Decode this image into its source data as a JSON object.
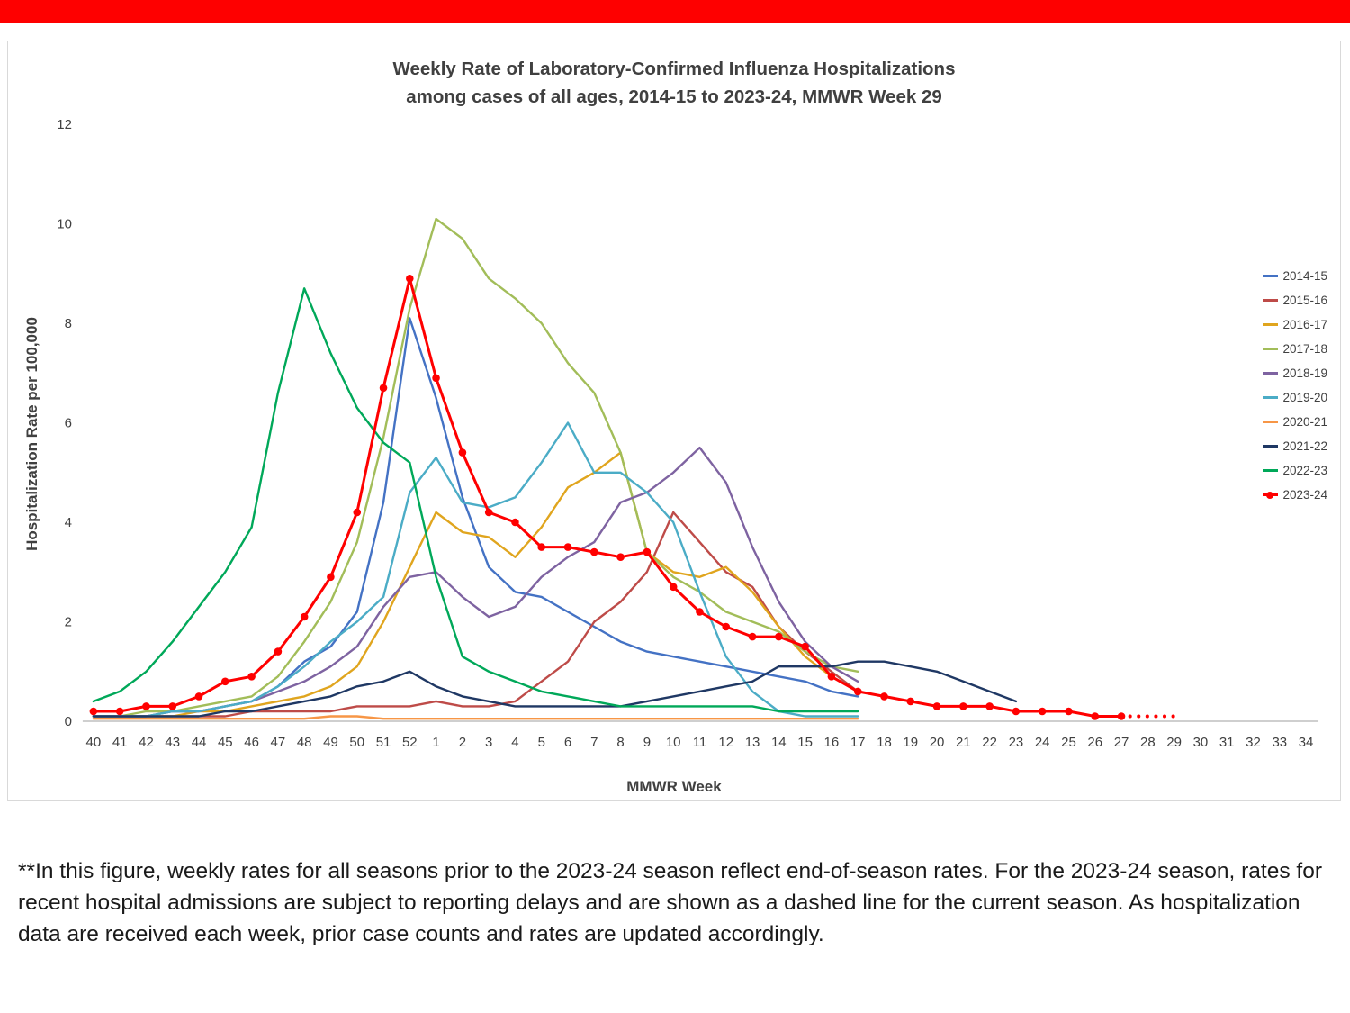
{
  "banner": {
    "color": "#FE0000"
  },
  "footnote": "**In this figure, weekly rates for all seasons prior to the 2023-24 season reflect end-of-season rates. For the 2023-24 season, rates for recent hospital admissions are subject to reporting delays and are shown as a dashed line for the current season. As hospitalization data are received each week, prior case counts and rates are updated accordingly.",
  "chart_data": {
    "type": "line",
    "title_line1": "Weekly Rate of Laboratory-Confirmed Influenza Hospitalizations",
    "title_line2": "among cases of all ages, 2014-15 to 2023-24, MMWR Week 29",
    "xlabel": "MMWR Week",
    "ylabel": "Hospitalization Rate per 100,000",
    "ylim": [
      0,
      12
    ],
    "yticks": [
      0,
      2,
      4,
      6,
      8,
      10,
      12
    ],
    "grid": false,
    "legend_position": "right",
    "categories": [
      "40",
      "41",
      "42",
      "43",
      "44",
      "45",
      "46",
      "47",
      "48",
      "49",
      "50",
      "51",
      "52",
      "1",
      "2",
      "3",
      "4",
      "5",
      "6",
      "7",
      "8",
      "9",
      "10",
      "11",
      "12",
      "13",
      "14",
      "15",
      "16",
      "17",
      "18",
      "19",
      "20",
      "21",
      "22",
      "23",
      "24",
      "25",
      "26",
      "27",
      "28",
      "29",
      "30",
      "31",
      "32",
      "33",
      "34"
    ],
    "series": [
      {
        "name": "2014-15",
        "color": "#4472C4",
        "values": [
          0.1,
          0.1,
          0.1,
          0.2,
          0.2,
          0.3,
          0.4,
          0.7,
          1.2,
          1.5,
          2.2,
          4.4,
          8.1,
          6.5,
          4.5,
          3.1,
          2.6,
          2.5,
          2.2,
          1.9,
          1.6,
          1.4,
          1.3,
          1.2,
          1.1,
          1.0,
          0.9,
          0.8,
          0.6,
          0.5,
          null,
          null,
          null,
          null,
          null,
          null,
          null,
          null,
          null,
          null,
          null,
          null,
          null,
          null,
          null,
          null,
          null
        ]
      },
      {
        "name": "2015-16",
        "color": "#BE4B48",
        "values": [
          0.1,
          0.1,
          0.1,
          0.1,
          0.1,
          0.1,
          0.2,
          0.2,
          0.2,
          0.2,
          0.3,
          0.3,
          0.3,
          0.4,
          0.3,
          0.3,
          0.4,
          0.8,
          1.2,
          2.0,
          2.4,
          3.0,
          4.2,
          3.6,
          3.0,
          2.7,
          1.9,
          1.4,
          1.0,
          0.6,
          null,
          null,
          null,
          null,
          null,
          null,
          null,
          null,
          null,
          null,
          null,
          null,
          null,
          null,
          null,
          null,
          null
        ]
      },
      {
        "name": "2016-17",
        "color": "#E0A51E",
        "values": [
          0.1,
          0.1,
          0.1,
          0.1,
          0.2,
          0.2,
          0.3,
          0.4,
          0.5,
          0.7,
          1.1,
          2.0,
          3.1,
          4.2,
          3.8,
          3.7,
          3.3,
          3.9,
          4.7,
          5.0,
          5.4,
          3.4,
          3.0,
          2.9,
          3.1,
          2.6,
          1.9,
          1.3,
          0.9,
          0.6,
          null,
          null,
          null,
          null,
          null,
          null,
          null,
          null,
          null,
          null,
          null,
          null,
          null,
          null,
          null,
          null,
          null
        ]
      },
      {
        "name": "2017-18",
        "color": "#A2BD59",
        "values": [
          0.1,
          0.1,
          0.2,
          0.2,
          0.3,
          0.4,
          0.5,
          0.9,
          1.6,
          2.4,
          3.6,
          5.7,
          8.3,
          10.1,
          9.7,
          8.9,
          8.5,
          8.0,
          7.2,
          6.6,
          5.4,
          3.4,
          2.9,
          2.6,
          2.2,
          2.0,
          1.8,
          1.4,
          1.1,
          1.0,
          null,
          null,
          null,
          null,
          null,
          null,
          null,
          null,
          null,
          null,
          null,
          null,
          null,
          null,
          null,
          null,
          null
        ]
      },
      {
        "name": "2018-19",
        "color": "#7E63A1",
        "values": [
          0.1,
          0.1,
          0.1,
          0.2,
          0.2,
          0.3,
          0.4,
          0.6,
          0.8,
          1.1,
          1.5,
          2.3,
          2.9,
          3.0,
          2.5,
          2.1,
          2.3,
          2.9,
          3.3,
          3.6,
          4.4,
          4.6,
          5.0,
          5.5,
          4.8,
          3.5,
          2.4,
          1.6,
          1.1,
          0.8,
          null,
          null,
          null,
          null,
          null,
          null,
          null,
          null,
          null,
          null,
          null,
          null,
          null,
          null,
          null,
          null,
          null
        ]
      },
      {
        "name": "2019-20",
        "color": "#4BACC6",
        "values": [
          0.1,
          0.1,
          0.1,
          0.2,
          0.2,
          0.3,
          0.4,
          0.7,
          1.1,
          1.6,
          2.0,
          2.5,
          4.6,
          5.3,
          4.4,
          4.3,
          4.5,
          5.2,
          6.0,
          5.0,
          5.0,
          4.6,
          4.0,
          2.6,
          1.3,
          0.6,
          0.2,
          0.1,
          0.1,
          0.1,
          null,
          null,
          null,
          null,
          null,
          null,
          null,
          null,
          null,
          null,
          null,
          null,
          null,
          null,
          null,
          null,
          null
        ]
      },
      {
        "name": "2020-21",
        "color": "#F79646",
        "values": [
          0.05,
          0.05,
          0.05,
          0.05,
          0.05,
          0.05,
          0.05,
          0.05,
          0.05,
          0.1,
          0.1,
          0.05,
          0.05,
          0.05,
          0.05,
          0.05,
          0.05,
          0.05,
          0.05,
          0.05,
          0.05,
          0.05,
          0.05,
          0.05,
          0.05,
          0.05,
          0.05,
          0.05,
          0.05,
          0.05,
          null,
          null,
          null,
          null,
          null,
          null,
          null,
          null,
          null,
          null,
          null,
          null,
          null,
          null,
          null,
          null,
          null
        ]
      },
      {
        "name": "2021-22",
        "color": "#1F3864",
        "values": [
          0.1,
          0.1,
          0.1,
          0.1,
          0.1,
          0.2,
          0.2,
          0.3,
          0.4,
          0.5,
          0.7,
          0.8,
          1.0,
          0.7,
          0.5,
          0.4,
          0.3,
          0.3,
          0.3,
          0.3,
          0.3,
          0.4,
          0.5,
          0.6,
          0.7,
          0.8,
          1.1,
          1.1,
          1.1,
          1.2,
          1.2,
          1.1,
          1.0,
          0.8,
          0.6,
          0.4,
          null,
          null,
          null,
          null,
          null,
          null,
          null,
          null,
          null,
          null,
          null
        ]
      },
      {
        "name": "2022-23",
        "color": "#00A859",
        "values": [
          0.4,
          0.6,
          1.0,
          1.6,
          2.3,
          3.0,
          3.9,
          6.6,
          8.7,
          7.4,
          6.3,
          5.6,
          5.2,
          2.9,
          1.3,
          1.0,
          0.8,
          0.6,
          0.5,
          0.4,
          0.3,
          0.3,
          0.3,
          0.3,
          0.3,
          0.3,
          0.2,
          0.2,
          0.2,
          0.2,
          null,
          null,
          null,
          null,
          null,
          null,
          null,
          null,
          null,
          null,
          null,
          null,
          null,
          null,
          null,
          null,
          null
        ]
      },
      {
        "name": "2023-24",
        "color": "#FF0000",
        "marker": true,
        "width": 3,
        "dash_from_category": "27",
        "values": [
          0.2,
          0.2,
          0.3,
          0.3,
          0.5,
          0.8,
          0.9,
          1.4,
          2.1,
          2.9,
          4.2,
          6.7,
          8.9,
          6.9,
          5.4,
          4.2,
          4.0,
          3.5,
          3.5,
          3.4,
          3.3,
          3.4,
          2.7,
          2.2,
          1.9,
          1.7,
          1.7,
          1.5,
          0.9,
          0.6,
          0.5,
          0.4,
          0.3,
          0.3,
          0.3,
          0.2,
          0.2,
          0.2,
          0.1,
          0.1,
          0.1,
          0.1,
          null,
          null,
          null,
          null,
          null
        ]
      }
    ]
  }
}
